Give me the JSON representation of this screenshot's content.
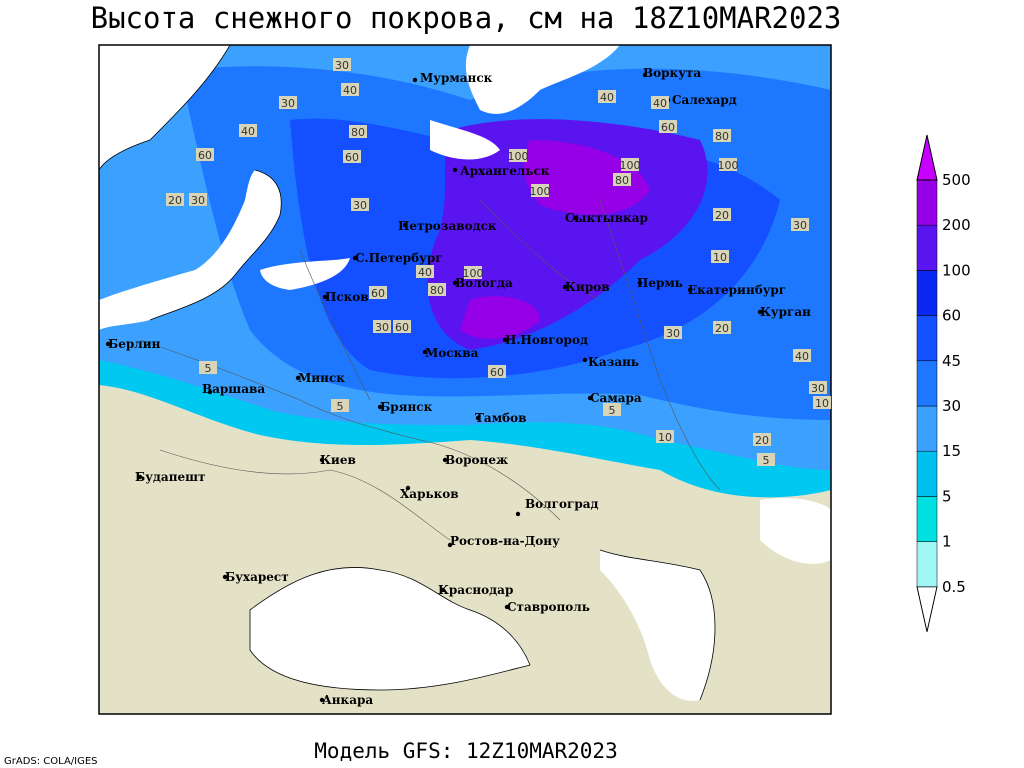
{
  "header": {
    "title": "Высота снежного покрова, см на 18Z10MAR2023"
  },
  "map": {
    "cities": [
      "Мурманск",
      "Воркута",
      "Салехард",
      "Архангельск",
      "Сыктывкар",
      "Петрозаводск",
      "С.Петербург",
      "Вологда",
      "Киров",
      "Пермь",
      "Екатеринбург",
      "Курган",
      "Псков",
      "Н.Новгород",
      "Казань",
      "Москва",
      "Берлин",
      "Минск",
      "Варшава",
      "Брянск",
      "Тамбов",
      "Самара",
      "Киев",
      "Воронеж",
      "Харьков",
      "Будапешт",
      "Волгоград",
      "Ростов-на-Дону",
      "Бухарест",
      "Краснодар",
      "Ставрополь",
      "Анкара"
    ],
    "contour_labels": [
      30,
      40,
      30,
      40,
      60,
      20,
      30,
      60,
      80,
      100,
      100,
      100,
      80,
      40,
      40,
      60,
      80,
      100,
      20,
      10,
      30,
      30,
      20,
      40,
      30,
      10,
      20,
      5,
      5,
      5,
      60,
      60,
      30,
      60,
      40,
      80,
      100,
      30,
      10,
      5
    ]
  },
  "legend": {
    "levels": [
      0.5,
      1,
      5,
      15,
      30,
      45,
      60,
      100,
      200,
      500
    ],
    "colors": [
      "#ffffff",
      "#a0f5f5",
      "#00e0e0",
      "#00c0f0",
      "#3ca0ff",
      "#1e78ff",
      "#1450ff",
      "#0a28f0",
      "#5a14f0",
      "#9600e6",
      "#c800ff"
    ]
  },
  "footer": {
    "model": "Модель GFS: 12Z10MAR2023",
    "credit": "GrADS: COLA/IGES"
  }
}
